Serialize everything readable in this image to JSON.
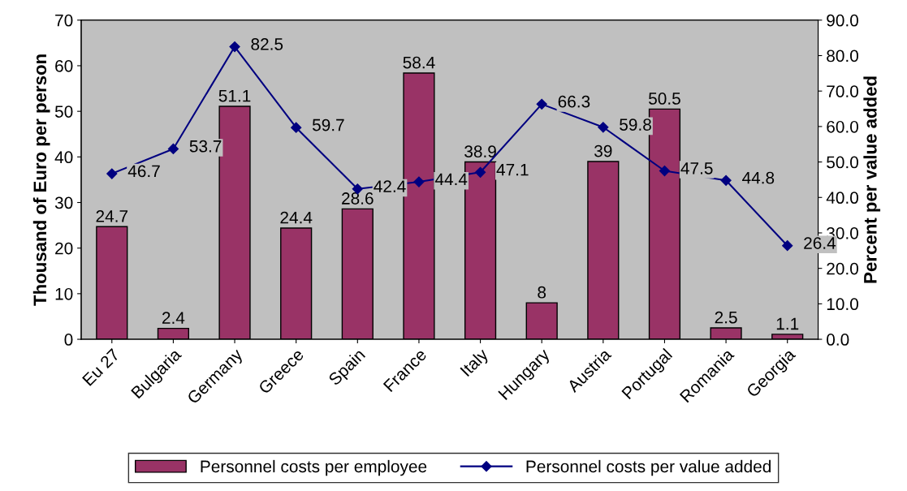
{
  "chart_data": {
    "type": "bar",
    "ylabel": "Thousand of Euro per person",
    "y2label": "Percent per value added",
    "categories": [
      "Eu 27",
      "Bulgaria",
      "Germany",
      "Greece",
      "Spain",
      "France",
      "Italy",
      "Hungary",
      "Austria",
      "Portugal",
      "Romania",
      "Georgia"
    ],
    "series": [
      {
        "name": "Personnel costs per employee",
        "color": "#993366",
        "values": [
          24.7,
          2.4,
          51.1,
          24.4,
          28.6,
          58.4,
          38.9,
          8,
          39,
          50.5,
          2.5,
          1.1
        ]
      },
      {
        "name": "Personnel costs per value added",
        "type": "line",
        "axis": "y2",
        "color": "#000080",
        "marker": "diamond",
        "values": [
          46.7,
          53.7,
          82.5,
          59.7,
          42.4,
          44.4,
          47.1,
          66.3,
          59.8,
          47.5,
          44.8,
          26.4
        ]
      }
    ],
    "ylim": [
      0,
      70
    ],
    "yticks": [
      0,
      10,
      20,
      30,
      40,
      50,
      60,
      70
    ],
    "y2lim": [
      0,
      90
    ],
    "y2ticks": [
      {
        "value": 0,
        "label": "0.0"
      },
      {
        "value": 10,
        "label": "10.0"
      },
      {
        "value": 20,
        "label": "20.0"
      },
      {
        "value": 30,
        "label": "30.0"
      },
      {
        "value": 40,
        "label": "40.0"
      },
      {
        "value": 50,
        "label": "50.0"
      },
      {
        "value": 60,
        "label": "60.0"
      },
      {
        "value": 70,
        "label": "70.0"
      },
      {
        "value": 80,
        "label": "80.0"
      },
      {
        "value": 90,
        "label": "90.0"
      }
    ],
    "data_labels": true,
    "grid": false,
    "legend": "bottom"
  }
}
